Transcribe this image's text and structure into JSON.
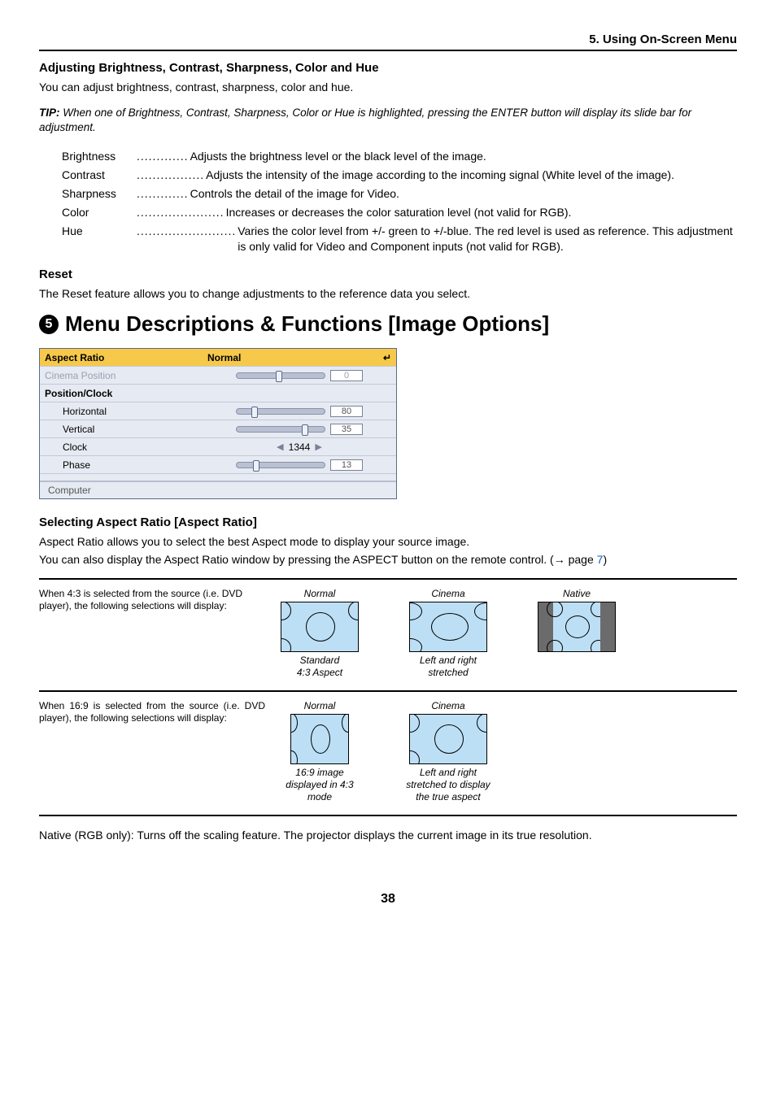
{
  "header": {
    "chapter": "5. Using On-Screen Menu"
  },
  "section_adjust": {
    "title": "Adjusting Brightness, Contrast, Sharpness, Color and Hue",
    "intro": "You can adjust brightness, contrast, sharpness, color and hue.",
    "tip_label": "TIP:",
    "tip_body": "When one of Brightness, Contrast, Sharpness, Color or Hue is highlighted, pressing the ENTER button will display its slide bar for adjustment.",
    "defs": [
      {
        "term": "Brightness",
        "desc": "Adjusts the brightness level or the black level of the image."
      },
      {
        "term": "Contrast",
        "desc": "Adjusts the intensity of the image according to the incoming signal (White level of the image)."
      },
      {
        "term": "Sharpness",
        "desc": "Controls the detail of the image for Video."
      },
      {
        "term": "Color",
        "desc": "Increases or decreases the color saturation level (not valid for RGB)."
      },
      {
        "term": "Hue",
        "desc": "Varies the color level from +/- green to +/-blue. The red level is used as reference. This adjustment is only valid for Video and Component inputs (not valid for RGB)."
      }
    ]
  },
  "section_reset": {
    "title": "Reset",
    "body": "The Reset feature allows you to change adjustments to the reference data you select."
  },
  "section_main": {
    "number": "5",
    "title": "Menu Descriptions & Functions [Image Options]"
  },
  "osd": {
    "aspect_label": "Aspect Ratio",
    "aspect_value": "Normal",
    "cinema_label": "Cinema Position",
    "cinema_value": "0",
    "cinema_slider_pct": 48,
    "posclock_label": "Position/Clock",
    "horiz_label": "Horizontal",
    "horiz_value": "80",
    "horiz_slider_pct": 20,
    "vert_label": "Vertical",
    "vert_value": "35",
    "vert_slider_pct": 78,
    "clock_label": "Clock",
    "clock_value": "1344",
    "phase_label": "Phase",
    "phase_value": "13",
    "phase_slider_pct": 22,
    "status": "Computer",
    "colors": {
      "highlight": "#f6c94b",
      "panel_bg": "#e6eaf2",
      "border": "#5a6a8a"
    }
  },
  "section_aspect": {
    "title": "Selecting Aspect Ratio [Aspect Ratio]",
    "p1": "Aspect Ratio allows you to select the best Aspect mode to display your source image.",
    "p2_a": "You can also display the Aspect Ratio window by pressing the ASPECT button on the remote control. (",
    "p2_arrow": "→",
    "p2_b": " page ",
    "p2_page": "7",
    "p2_c": ")",
    "row43": {
      "text": "When 4:3 is selected from the source (i.e. DVD player), the following selections will display:",
      "cells": [
        {
          "title": "Normal",
          "caption": "Standard\n4:3 Aspect",
          "mode": "normal43"
        },
        {
          "title": "Cinema",
          "caption": "Left and right\nstretched",
          "mode": "cinema"
        },
        {
          "title": "Native",
          "caption": "",
          "mode": "native"
        }
      ]
    },
    "row169": {
      "text": "When 16:9 is selected from the source (i.e. DVD player), the following selections will display:",
      "cells": [
        {
          "title": "Normal",
          "caption": "16:9 image\ndisplayed in 4:3\nmode",
          "mode": "normal169"
        },
        {
          "title": "Cinema",
          "caption": "Left and right\nstretched to display\nthe true aspect",
          "mode": "cinema"
        }
      ]
    },
    "note": "Native (RGB only): Turns off the scaling feature. The projector displays the current image in its true resolution."
  },
  "page_number": "38"
}
